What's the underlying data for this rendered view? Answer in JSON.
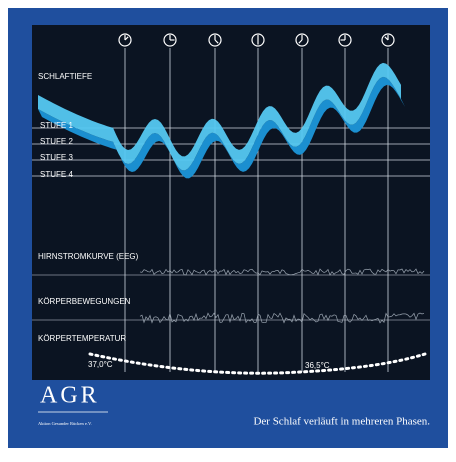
{
  "diagram": {
    "sleep_depth_label": "SCHLAFTIEFE",
    "stages": [
      "STUFE 1",
      "STUFE 2",
      "STUFE 3",
      "STUFE 4"
    ],
    "eeg_label": "HIRNSTROMKURVE (EEG)",
    "movement_label": "KÖRPERBEWEGUNGEN",
    "temperature": {
      "label": "KÖRPERTEMPERATUR",
      "start": "37,0°C",
      "low": "36,5°C"
    }
  },
  "footer": {
    "logo": "AGR",
    "organization": "Aktion Gesunder Rücken e.V.",
    "caption": "Der Schlaf verläuft in mehreren Phasen."
  }
}
